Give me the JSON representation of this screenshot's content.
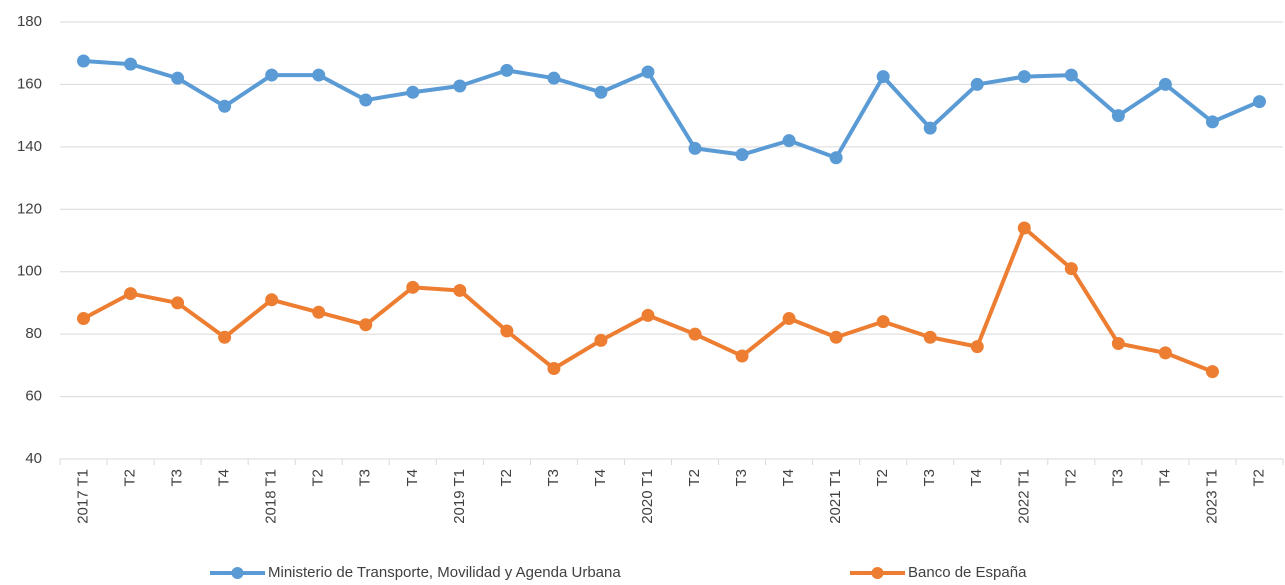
{
  "chart_data": {
    "type": "line",
    "categories": [
      "2017 T1",
      "T2",
      "T3",
      "T4",
      "2018 T1",
      "T2",
      "T3",
      "T4",
      "2019 T1",
      "T2",
      "T3",
      "T4",
      "2020 T1",
      "T2",
      "T3",
      "T4",
      "2021 T1",
      "T2",
      "T3",
      "T4",
      "2022 T1",
      "T2",
      "T3",
      "T4",
      "2023 T1",
      "T2"
    ],
    "series": [
      {
        "name": "Ministerio de Transporte, Movilidad y Agenda Urbana",
        "color": "#5b9bd5",
        "values": [
          167.5,
          166.5,
          162,
          153,
          163,
          163,
          155,
          157.5,
          159.5,
          164.5,
          162,
          157.5,
          164,
          139.5,
          137.5,
          142,
          136.5,
          162.5,
          146,
          160,
          162.5,
          163,
          150,
          160,
          148,
          154.5
        ]
      },
      {
        "name": "Banco de España",
        "color": "#ed7d31",
        "values": [
          85,
          93,
          90,
          79,
          91,
          87,
          83,
          95,
          94,
          81,
          69,
          78,
          86,
          80,
          73,
          85,
          79,
          84,
          79,
          76,
          114,
          101,
          77,
          74,
          68,
          null
        ]
      }
    ],
    "ylim": [
      40,
      180
    ],
    "yticks": [
      40,
      60,
      80,
      100,
      120,
      140,
      160,
      180
    ],
    "grid": true,
    "legend": "bottom"
  }
}
